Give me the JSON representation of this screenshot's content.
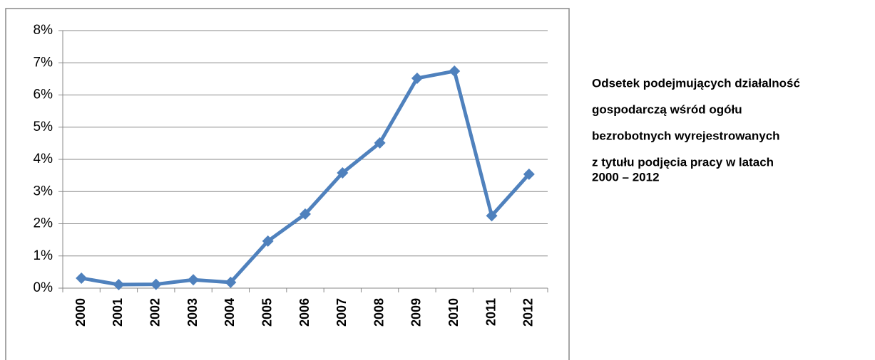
{
  "chart_data": {
    "type": "line",
    "title_lines": [
      "Odsetek podejmujących działalność",
      "gospodarczą wśród ogółu",
      "bezrobotnych wyrejestrowanych",
      "z tytułu podjęcia pracy w latach",
      "2000 – 2012"
    ],
    "categories": [
      "2000",
      "2001",
      "2002",
      "2003",
      "2004",
      "2005",
      "2006",
      "2007",
      "2008",
      "2009",
      "2010",
      "2011",
      "2012"
    ],
    "values": [
      0.31,
      0.11,
      0.12,
      0.26,
      0.18,
      1.46,
      2.3,
      3.58,
      4.51,
      6.52,
      6.74,
      2.25,
      3.54
    ],
    "color": "#4f81bd",
    "ylim": [
      0,
      8
    ],
    "yticks": [
      {
        "value": 0,
        "label": "0%"
      },
      {
        "value": 1,
        "label": "1%"
      },
      {
        "value": 2,
        "label": "2%"
      },
      {
        "value": 3,
        "label": "3%"
      },
      {
        "value": 4,
        "label": "4%"
      },
      {
        "value": 5,
        "label": "5%"
      },
      {
        "value": 6,
        "label": "6%"
      },
      {
        "value": 7,
        "label": "7%"
      },
      {
        "value": 8,
        "label": "8%"
      }
    ],
    "grid": true
  }
}
